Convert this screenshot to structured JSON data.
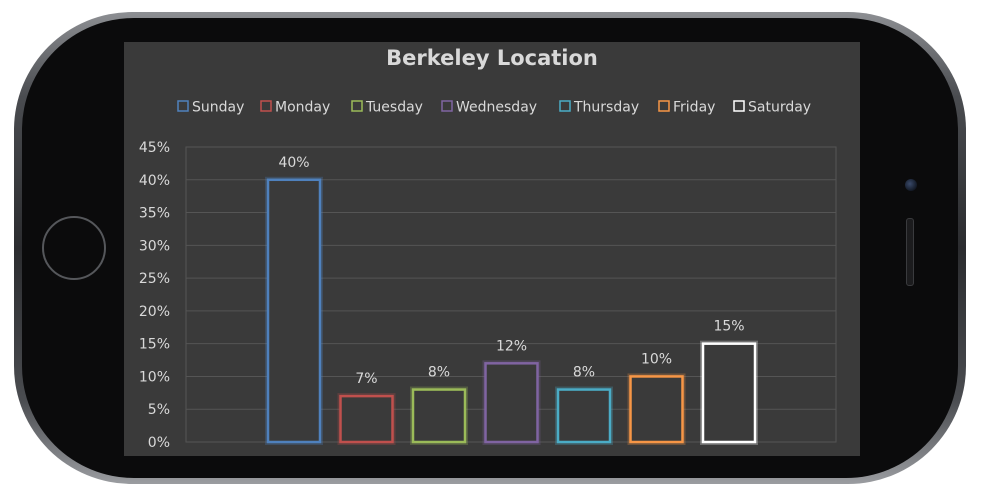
{
  "chart_data": {
    "type": "bar",
    "title": "Berkeley Location",
    "categories": [
      "Sunday",
      "Monday",
      "Tuesday",
      "Wednesday",
      "Thursday",
      "Friday",
      "Saturday"
    ],
    "values": [
      40,
      7,
      8,
      12,
      8,
      10,
      15
    ],
    "value_labels": [
      "40%",
      "7%",
      "8%",
      "12%",
      "8%",
      "10%",
      "15%"
    ],
    "colors": [
      "#4f81bd",
      "#c0504d",
      "#9bbb59",
      "#8064a2",
      "#4bacc6",
      "#f79646",
      "#ffffff"
    ],
    "ylim": [
      0,
      45
    ],
    "yticks": [
      "0%",
      "5%",
      "10%",
      "15%",
      "20%",
      "25%",
      "30%",
      "35%",
      "40%",
      "45%"
    ],
    "legend_position": "top",
    "grid": true
  }
}
